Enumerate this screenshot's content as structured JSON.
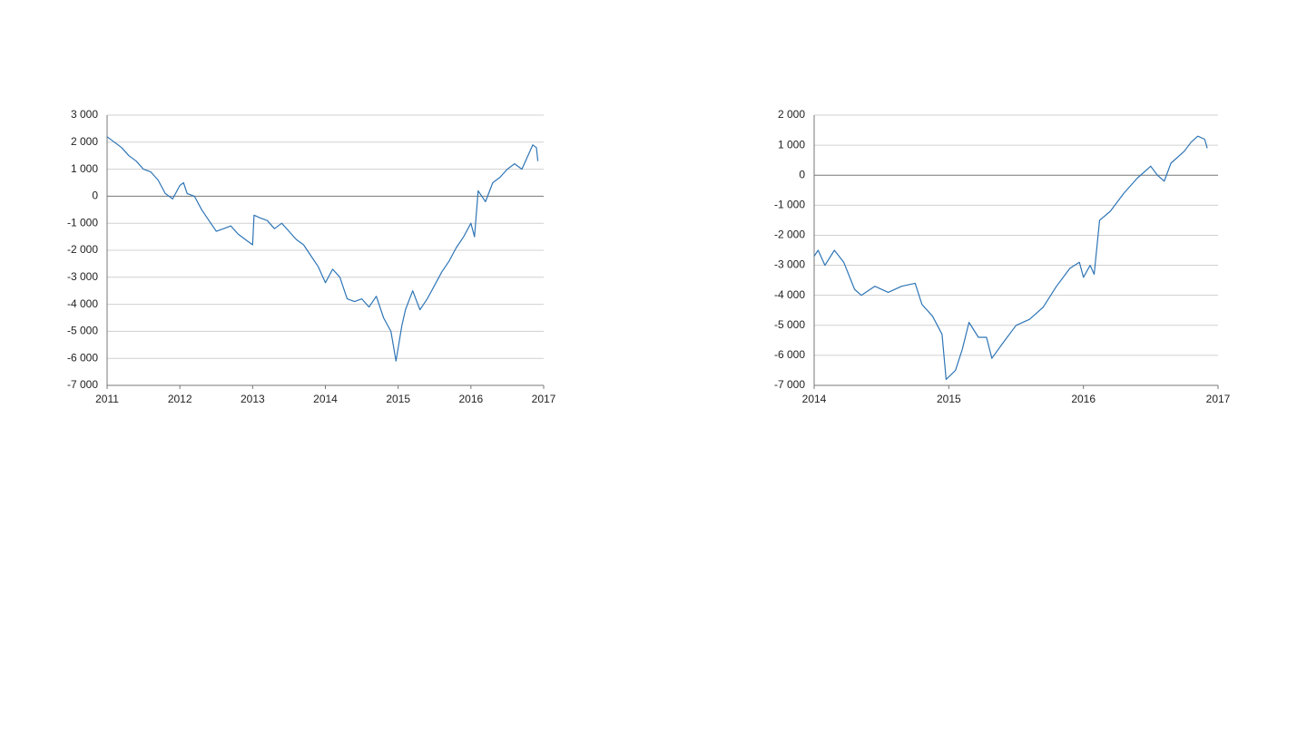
{
  "chart_data": [
    {
      "type": "line",
      "xlim": [
        2011,
        2017
      ],
      "xticks": [
        2011,
        2012,
        2013,
        2014,
        2015,
        2016,
        2017
      ],
      "ylim": [
        -7000,
        3000
      ],
      "yticks": [
        {
          "value": -7000,
          "label": "-7 000"
        },
        {
          "value": -6000,
          "label": "-6 000"
        },
        {
          "value": -5000,
          "label": "-5 000"
        },
        {
          "value": -4000,
          "label": "-4 000"
        },
        {
          "value": -3000,
          "label": "-3 000"
        },
        {
          "value": -2000,
          "label": "-2 000"
        },
        {
          "value": -1000,
          "label": "-1 000"
        },
        0,
        {
          "value": 1000,
          "label": "1 000"
        },
        {
          "value": 2000,
          "label": "2 000"
        },
        {
          "value": 3000,
          "label": "3 000"
        }
      ],
      "grid": true,
      "x": [
        2011.0,
        2011.1,
        2011.2,
        2011.3,
        2011.4,
        2011.5,
        2011.6,
        2011.7,
        2011.8,
        2011.9,
        2012.0,
        2012.05,
        2012.1,
        2012.2,
        2012.3,
        2012.4,
        2012.5,
        2012.6,
        2012.7,
        2012.8,
        2012.9,
        2013.0,
        2013.02,
        2013.1,
        2013.2,
        2013.3,
        2013.4,
        2013.5,
        2013.6,
        2013.7,
        2013.8,
        2013.9,
        2014.0,
        2014.1,
        2014.2,
        2014.3,
        2014.4,
        2014.5,
        2014.6,
        2014.7,
        2014.8,
        2014.9,
        2014.97,
        2015.05,
        2015.1,
        2015.2,
        2015.3,
        2015.4,
        2015.5,
        2015.6,
        2015.7,
        2015.8,
        2015.9,
        2016.0,
        2016.05,
        2016.1,
        2016.2,
        2016.3,
        2016.4,
        2016.5,
        2016.6,
        2016.7,
        2016.8,
        2016.85,
        2016.9,
        2016.92
      ],
      "series": [
        {
          "color": "#2e75b6",
          "values": [
            2200,
            2000,
            1800,
            1500,
            1300,
            1000,
            900,
            600,
            100,
            -100,
            400,
            500,
            100,
            0,
            -500,
            -900,
            -1300,
            -1200,
            -1100,
            -1400,
            -1600,
            -1800,
            -700,
            -800,
            -900,
            -1200,
            -1000,
            -1300,
            -1600,
            -1800,
            -2200,
            -2600,
            -3200,
            -2700,
            -3000,
            -3800,
            -3900,
            -3800,
            -4100,
            -3700,
            -4500,
            -5000,
            -6100,
            -4800,
            -4200,
            -3500,
            -4200,
            -3800,
            -3300,
            -2800,
            -2400,
            -1900,
            -1500,
            -1000,
            -1500,
            200,
            -200,
            500,
            700,
            1000,
            1200,
            1000,
            1600,
            1900,
            1800,
            1300
          ]
        }
      ]
    },
    {
      "type": "line",
      "xlim": [
        2014,
        2017
      ],
      "xticks": [
        2014,
        2015,
        2016,
        2017
      ],
      "ylim": [
        -7000,
        2000
      ],
      "yticks": [
        {
          "value": -7000,
          "label": "-7 000"
        },
        {
          "value": -6000,
          "label": "-6 000"
        },
        {
          "value": -5000,
          "label": "-5 000"
        },
        {
          "value": -4000,
          "label": "-4 000"
        },
        {
          "value": -3000,
          "label": "-3 000"
        },
        {
          "value": -2000,
          "label": "-2 000"
        },
        {
          "value": -1000,
          "label": "-1 000"
        },
        0,
        {
          "value": 1000,
          "label": "1 000"
        },
        {
          "value": 2000,
          "label": "2 000"
        }
      ],
      "grid": true,
      "x": [
        2014.0,
        2014.03,
        2014.08,
        2014.15,
        2014.22,
        2014.3,
        2014.35,
        2014.45,
        2014.55,
        2014.65,
        2014.75,
        2014.8,
        2014.88,
        2014.95,
        2014.98,
        2015.05,
        2015.1,
        2015.15,
        2015.22,
        2015.28,
        2015.32,
        2015.4,
        2015.5,
        2015.6,
        2015.7,
        2015.8,
        2015.9,
        2015.97,
        2016.0,
        2016.05,
        2016.08,
        2016.12,
        2016.2,
        2016.3,
        2016.4,
        2016.5,
        2016.55,
        2016.6,
        2016.65,
        2016.75,
        2016.8,
        2016.85,
        2016.9,
        2016.92
      ],
      "series": [
        {
          "color": "#2e75b6",
          "values": [
            -2700,
            -2500,
            -3000,
            -2500,
            -2900,
            -3800,
            -4000,
            -3700,
            -3900,
            -3700,
            -3600,
            -4300,
            -4700,
            -5300,
            -6800,
            -6500,
            -5800,
            -4900,
            -5400,
            -5400,
            -6100,
            -5600,
            -5000,
            -4800,
            -4400,
            -3700,
            -3100,
            -2900,
            -3400,
            -3000,
            -3300,
            -1500,
            -1200,
            -600,
            -100,
            300,
            0,
            -200,
            400,
            800,
            1100,
            1300,
            1200,
            900
          ]
        }
      ]
    }
  ]
}
